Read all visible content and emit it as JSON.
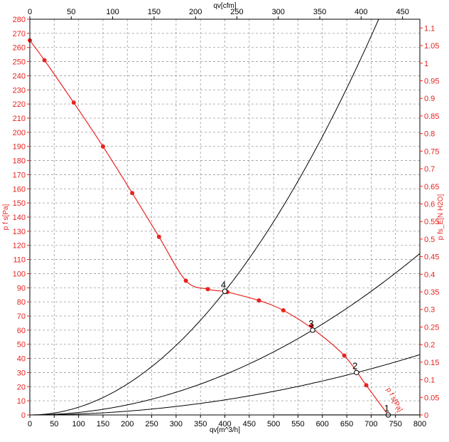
{
  "chart_data": {
    "type": "line",
    "axes": {
      "x_bottom": {
        "label": "qv[m^3/h]",
        "range": [
          0,
          800
        ],
        "ticks": [
          0,
          50,
          100,
          150,
          200,
          250,
          300,
          350,
          400,
          450,
          500,
          550,
          600,
          650,
          700,
          750,
          800
        ]
      },
      "x_top": {
        "label": "qv[cfm]",
        "range": [
          0,
          470.9
        ],
        "ticks": [
          0,
          50,
          100,
          150,
          200,
          250,
          300,
          350,
          400,
          450
        ]
      },
      "y_left": {
        "label": "p f s[Pa]",
        "range": [
          0,
          280
        ],
        "ticks": [
          0,
          10,
          20,
          30,
          40,
          50,
          60,
          70,
          80,
          90,
          100,
          110,
          120,
          130,
          140,
          150,
          160,
          170,
          180,
          190,
          200,
          210,
          220,
          230,
          240,
          250,
          260,
          270,
          280
        ]
      },
      "y_right": {
        "label": "p fs_E[N H2O]",
        "range": [
          0,
          1.125
        ],
        "ticks": [
          "0",
          "0.05",
          "0.1",
          "0.15",
          "0.2",
          "0.25",
          "0.3",
          "0.35",
          "0.4",
          "0.45",
          "0.5",
          "0.55",
          "0.6",
          "0.65",
          "0.7",
          "0.75",
          "0.8",
          "0.85",
          "0.9",
          "0.95",
          "1",
          "1.05",
          "1.1"
        ]
      }
    },
    "grid": true,
    "fan_curve": {
      "color": "#e8231f",
      "curve_label": "p f s[Pa]",
      "points": [
        [
          0,
          265
        ],
        [
          30,
          251
        ],
        [
          90,
          221
        ],
        [
          150,
          190
        ],
        [
          210,
          157
        ],
        [
          265,
          126
        ],
        [
          320,
          95
        ],
        [
          365,
          89
        ],
        [
          400,
          87.5
        ],
        [
          405,
          87
        ],
        [
          470,
          81
        ],
        [
          520,
          74
        ],
        [
          580,
          61
        ],
        [
          645,
          42
        ],
        [
          690,
          21
        ],
        [
          735,
          0
        ]
      ],
      "markers": [
        [
          0,
          265
        ],
        [
          30,
          251
        ],
        [
          90,
          221
        ],
        [
          150,
          190
        ],
        [
          210,
          157
        ],
        [
          265,
          126
        ],
        [
          320,
          95
        ],
        [
          365,
          89
        ],
        [
          405,
          87
        ],
        [
          470,
          81
        ],
        [
          520,
          74
        ],
        [
          578,
          63
        ],
        [
          645,
          42
        ],
        [
          690,
          21
        ]
      ]
    },
    "system_curves": [
      {
        "operating_point_label": "4",
        "k": 0.000547,
        "x_end": 758
      },
      {
        "operating_point_label": "3",
        "k": 0.0001785,
        "x_end": 800
      },
      {
        "operating_point_label": "2",
        "k": 6.67e-05,
        "x_end": 800
      },
      {
        "operating_point_label": "1",
        "k": 1e-07,
        "x_end": 800
      }
    ],
    "operating_points": [
      {
        "label": "4",
        "x": 400,
        "y": 87.5
      },
      {
        "label": "3",
        "x": 580,
        "y": 60
      },
      {
        "label": "2",
        "x": 670,
        "y": 30
      },
      {
        "label": "1",
        "x": 735,
        "y": 0
      }
    ]
  }
}
